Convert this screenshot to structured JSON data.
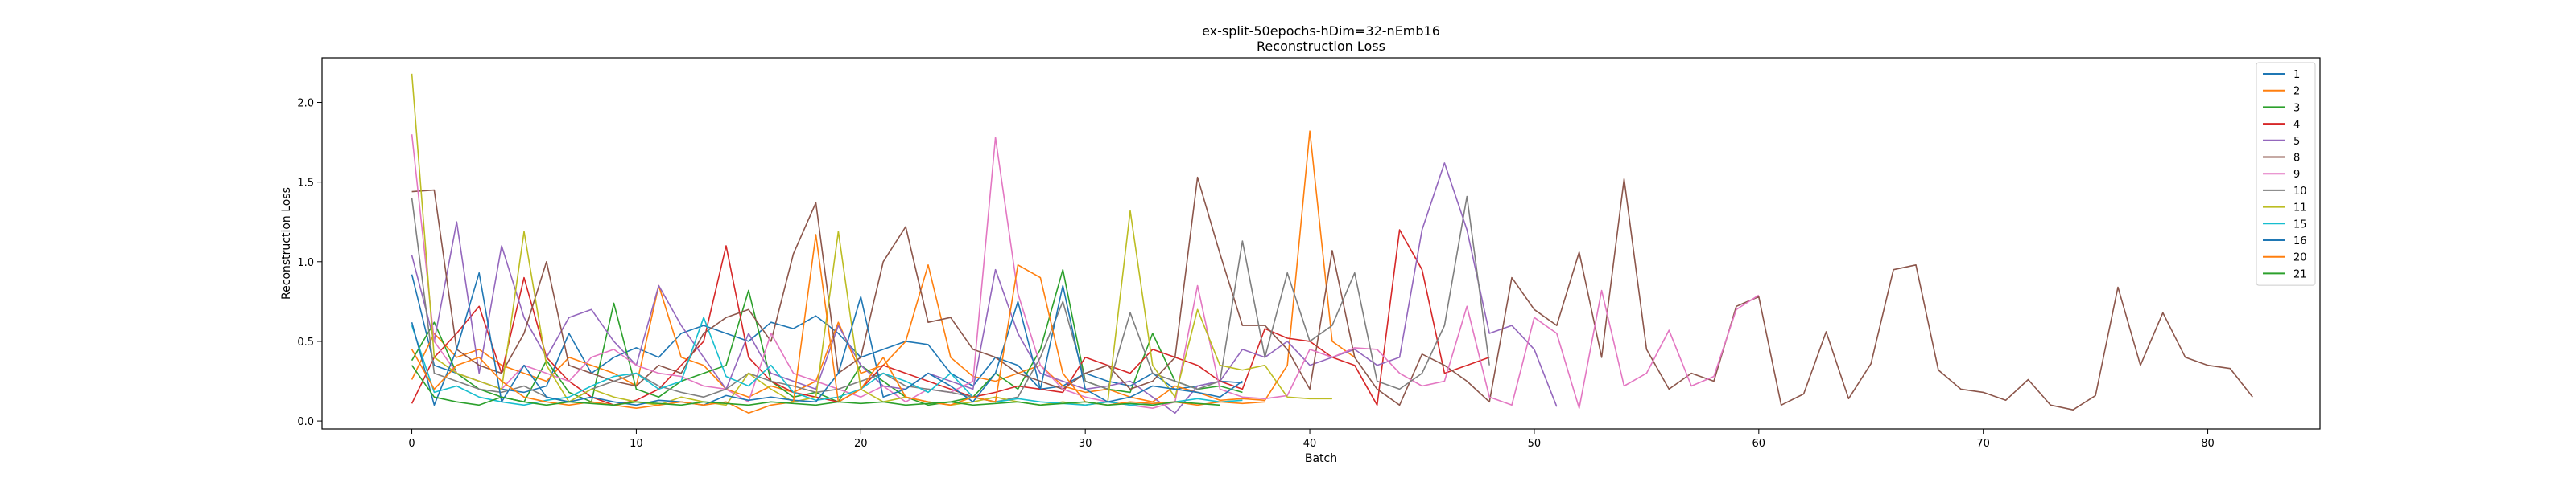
{
  "chart_data": {
    "type": "line",
    "title": "ex-split-50epochs-hDim=32-nEmb16",
    "subtitle": "Reconstruction Loss",
    "xlabel": "Batch",
    "ylabel": "Reconstruction Loss",
    "xlim": [
      -4,
      85
    ],
    "ylim": [
      -0.05,
      2.28
    ],
    "xticks": [
      0,
      10,
      20,
      30,
      40,
      50,
      60,
      70,
      80
    ],
    "yticks": [
      0.0,
      0.5,
      1.0,
      1.5,
      2.0
    ],
    "grid": false,
    "legend_position": "top-right",
    "series": [
      {
        "name": "1",
        "color": "#1f77b4",
        "values": [
          0.92,
          0.35,
          0.3,
          0.25,
          0.2,
          0.18,
          0.22,
          0.55,
          0.3,
          0.4,
          0.46,
          0.4,
          0.55,
          0.6,
          0.55,
          0.5,
          0.62,
          0.58,
          0.66,
          0.55,
          0.4,
          0.45,
          0.5,
          0.48,
          0.3,
          0.22,
          0.4,
          0.35,
          0.2,
          0.22,
          0.3,
          0.25,
          0.22,
          0.3,
          0.2,
          0.22,
          0.25,
          0.24
        ]
      },
      {
        "name": "2",
        "color": "#ff7f0e",
        "values": [
          0.26,
          0.55,
          0.4,
          0.45,
          0.35,
          0.3,
          0.25,
          0.4,
          0.35,
          0.3,
          0.22,
          0.85,
          0.4,
          0.35,
          0.2,
          0.15,
          0.22,
          0.18,
          0.25,
          0.62,
          0.3,
          0.35,
          0.5,
          0.98,
          0.4,
          0.28,
          0.25,
          0.3,
          0.35,
          0.22,
          0.18,
          0.2,
          0.15,
          0.12,
          0.22,
          0.18,
          0.13,
          0.14,
          0.13,
          0.35,
          1.82,
          0.5,
          0.4
        ]
      },
      {
        "name": "3",
        "color": "#2ca02c",
        "values": [
          0.38,
          0.62,
          0.3,
          0.2,
          0.15,
          0.12,
          0.38,
          0.18,
          0.12,
          0.74,
          0.2,
          0.15,
          0.25,
          0.3,
          0.35,
          0.82,
          0.25,
          0.15,
          0.18,
          0.12,
          0.35,
          0.25,
          0.15,
          0.1,
          0.12,
          0.15,
          0.3,
          0.2,
          0.45,
          0.95,
          0.25,
          0.2,
          0.18,
          0.55,
          0.25,
          0.2,
          0.22,
          0.18
        ]
      },
      {
        "name": "4",
        "color": "#d62728",
        "values": [
          0.11,
          0.4,
          0.55,
          0.72,
          0.3,
          0.9,
          0.4,
          0.25,
          0.15,
          0.1,
          0.13,
          0.2,
          0.35,
          0.5,
          1.1,
          0.4,
          0.25,
          0.18,
          0.15,
          0.12,
          0.2,
          0.35,
          0.3,
          0.25,
          0.2,
          0.15,
          0.18,
          0.22,
          0.2,
          0.18,
          0.4,
          0.35,
          0.3,
          0.45,
          0.4,
          0.35,
          0.25,
          0.2,
          0.58,
          0.52,
          0.5,
          0.4,
          0.35,
          0.1,
          1.2,
          0.95,
          0.3,
          0.35,
          0.4
        ]
      },
      {
        "name": "5",
        "color": "#9467bd",
        "values": [
          1.04,
          0.5,
          1.25,
          0.3,
          1.1,
          0.65,
          0.4,
          0.65,
          0.7,
          0.5,
          0.35,
          0.85,
          0.6,
          0.4,
          0.2,
          0.55,
          0.3,
          0.25,
          0.2,
          0.6,
          0.35,
          0.22,
          0.2,
          0.3,
          0.25,
          0.2,
          0.95,
          0.55,
          0.3,
          0.25,
          0.2,
          0.22,
          0.25,
          0.15,
          0.05,
          0.22,
          0.25,
          0.45,
          0.4,
          0.5,
          0.35,
          0.4,
          0.45,
          0.35,
          0.4,
          1.2,
          1.62,
          1.2,
          0.55,
          0.6,
          0.45,
          0.09
        ]
      },
      {
        "name": "8",
        "color": "#8c564b",
        "values": [
          1.44,
          1.45,
          0.45,
          0.35,
          0.3,
          0.55,
          1.0,
          0.35,
          0.3,
          0.25,
          0.22,
          0.35,
          0.3,
          0.55,
          0.65,
          0.7,
          0.5,
          1.05,
          1.37,
          0.3,
          0.4,
          1.0,
          1.22,
          0.62,
          0.65,
          0.45,
          0.4,
          0.3,
          0.25,
          0.2,
          0.3,
          0.35,
          0.2,
          0.25,
          0.4,
          1.53,
          1.05,
          0.6,
          0.6,
          0.45,
          0.2,
          1.07,
          0.4,
          0.2,
          0.1,
          0.42,
          0.35,
          0.25,
          0.12,
          0.9,
          0.7,
          0.6,
          1.06,
          0.4,
          1.52,
          0.45,
          0.2,
          0.3,
          0.25,
          0.72,
          0.78,
          0.1,
          0.17,
          0.56,
          0.14,
          0.36,
          0.95,
          0.98,
          0.32,
          0.2,
          0.18,
          0.13,
          0.26,
          0.1,
          0.07,
          0.16,
          0.84,
          0.35,
          0.68,
          0.4,
          0.35,
          0.33,
          0.15
        ]
      },
      {
        "name": "9",
        "color": "#e377c2",
        "values": [
          1.8,
          0.5,
          0.3,
          0.25,
          0.2,
          0.35,
          0.3,
          0.25,
          0.4,
          0.45,
          0.35,
          0.3,
          0.28,
          0.22,
          0.2,
          0.12,
          0.55,
          0.3,
          0.25,
          0.2,
          0.15,
          0.22,
          0.12,
          0.2,
          0.18,
          0.25,
          1.78,
          0.8,
          0.35,
          0.2,
          0.15,
          0.12,
          0.1,
          0.08,
          0.12,
          0.85,
          0.2,
          0.15,
          0.14,
          0.16,
          0.45,
          0.4,
          0.46,
          0.45,
          0.3,
          0.22,
          0.25,
          0.72,
          0.15,
          0.1,
          0.65,
          0.55,
          0.08,
          0.82,
          0.22,
          0.3,
          0.57,
          0.22,
          0.28,
          0.7,
          0.79
        ]
      },
      {
        "name": "10",
        "color": "#7f7f7f",
        "values": [
          1.4,
          0.3,
          0.25,
          0.2,
          0.18,
          0.22,
          0.15,
          0.12,
          0.2,
          0.25,
          0.3,
          0.22,
          0.18,
          0.15,
          0.2,
          0.3,
          0.25,
          0.22,
          0.18,
          0.2,
          0.25,
          0.3,
          0.22,
          0.2,
          0.18,
          0.15,
          0.12,
          0.15,
          0.4,
          0.75,
          0.25,
          0.2,
          0.68,
          0.3,
          0.25,
          0.2,
          0.25,
          1.13,
          0.4,
          0.93,
          0.5,
          0.6,
          0.93,
          0.25,
          0.2,
          0.3,
          0.6,
          1.41,
          0.35
        ]
      },
      {
        "name": "11",
        "color": "#bcbd22",
        "values": [
          2.18,
          0.4,
          0.3,
          0.25,
          0.2,
          1.19,
          0.35,
          0.12,
          0.2,
          0.15,
          0.12,
          0.1,
          0.15,
          0.12,
          0.1,
          0.3,
          0.2,
          0.12,
          0.15,
          1.19,
          0.2,
          0.12,
          0.15,
          0.12,
          0.1,
          0.12,
          0.15,
          0.12,
          0.1,
          0.12,
          0.1,
          0.12,
          1.32,
          0.35,
          0.15,
          0.7,
          0.35,
          0.32,
          0.35,
          0.15,
          0.14,
          0.14
        ]
      },
      {
        "name": "15",
        "color": "#17becf",
        "values": [
          0.6,
          0.18,
          0.22,
          0.15,
          0.12,
          0.1,
          0.13,
          0.15,
          0.22,
          0.28,
          0.3,
          0.2,
          0.25,
          0.65,
          0.28,
          0.22,
          0.35,
          0.18,
          0.13,
          0.15,
          0.2,
          0.3,
          0.25,
          0.18,
          0.3,
          0.15,
          0.12,
          0.14,
          0.12,
          0.11,
          0.1,
          0.12,
          0.1,
          0.11,
          0.12,
          0.14,
          0.12,
          0.13
        ]
      },
      {
        "name": "16",
        "color": "#1f77b4",
        "values": [
          0.62,
          0.1,
          0.45,
          0.93,
          0.12,
          0.35,
          0.15,
          0.12,
          0.15,
          0.12,
          0.1,
          0.13,
          0.12,
          0.1,
          0.16,
          0.13,
          0.15,
          0.13,
          0.12,
          0.3,
          0.78,
          0.15,
          0.2,
          0.3,
          0.22,
          0.12,
          0.3,
          0.75,
          0.2,
          0.85,
          0.2,
          0.12,
          0.15,
          0.22,
          0.2,
          0.18,
          0.15,
          0.25
        ]
      },
      {
        "name": "20",
        "color": "#ff7f0e",
        "values": [
          0.45,
          0.2,
          0.35,
          0.4,
          0.25,
          0.15,
          0.12,
          0.1,
          0.12,
          0.1,
          0.08,
          0.1,
          0.12,
          0.1,
          0.12,
          0.05,
          0.1,
          0.12,
          1.17,
          0.12,
          0.2,
          0.4,
          0.15,
          0.12,
          0.1,
          0.15,
          0.12,
          0.98,
          0.9,
          0.3,
          0.12,
          0.1,
          0.12,
          0.11,
          0.12,
          0.1,
          0.12,
          0.11,
          0.12
        ]
      },
      {
        "name": "21",
        "color": "#2ca02c",
        "values": [
          0.35,
          0.15,
          0.12,
          0.1,
          0.15,
          0.12,
          0.1,
          0.12,
          0.11,
          0.1,
          0.12,
          0.11,
          0.1,
          0.12,
          0.11,
          0.1,
          0.12,
          0.11,
          0.1,
          0.12,
          0.11,
          0.12,
          0.1,
          0.11,
          0.12,
          0.1,
          0.11,
          0.12,
          0.1,
          0.11,
          0.12,
          0.1,
          0.11,
          0.1,
          0.12,
          0.11,
          0.1
        ]
      }
    ]
  }
}
